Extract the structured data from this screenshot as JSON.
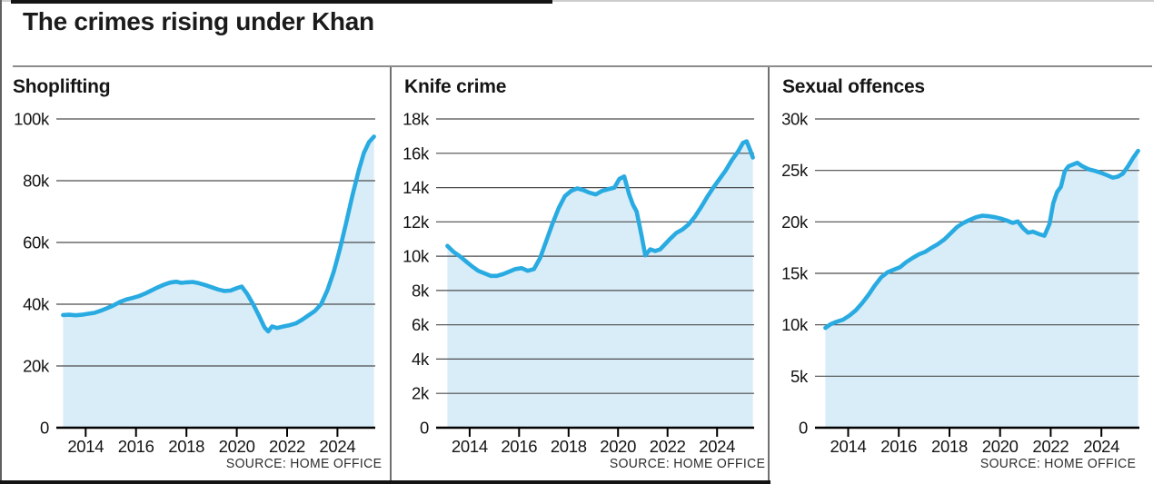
{
  "header": {
    "title": "The crimes rising under Khan"
  },
  "colors": {
    "line": "#29abe2",
    "fill": "#d8edf8",
    "grid": "#4d4d4d",
    "axis": "#000000",
    "text": "#141414"
  },
  "chart_data": [
    {
      "type": "area",
      "title": "Shoplifting",
      "source": "SOURCE: HOME OFFICE",
      "ylim": [
        0,
        100000
      ],
      "ylabels": [
        "100k",
        "80k",
        "60k",
        "40k",
        "20k",
        "0"
      ],
      "xticks": [
        2014,
        2016,
        2018,
        2020,
        2022,
        2024
      ],
      "xlim": [
        2013.05,
        2025.5
      ],
      "legend": "none",
      "grid": "horizontal",
      "points": [
        [
          2013.1,
          36500
        ],
        [
          2013.35,
          36600
        ],
        [
          2013.6,
          36400
        ],
        [
          2013.85,
          36600
        ],
        [
          2014.1,
          36900
        ],
        [
          2014.35,
          37200
        ],
        [
          2014.6,
          37900
        ],
        [
          2014.85,
          38700
        ],
        [
          2015.1,
          39600
        ],
        [
          2015.35,
          40700
        ],
        [
          2015.6,
          41500
        ],
        [
          2015.85,
          42000
        ],
        [
          2016.1,
          42600
        ],
        [
          2016.35,
          43400
        ],
        [
          2016.6,
          44400
        ],
        [
          2016.85,
          45400
        ],
        [
          2017.1,
          46300
        ],
        [
          2017.35,
          47000
        ],
        [
          2017.6,
          47300
        ],
        [
          2017.8,
          46900
        ],
        [
          2018.0,
          47100
        ],
        [
          2018.25,
          47200
        ],
        [
          2018.5,
          46800
        ],
        [
          2018.75,
          46200
        ],
        [
          2019.0,
          45500
        ],
        [
          2019.25,
          44800
        ],
        [
          2019.5,
          44300
        ],
        [
          2019.75,
          44400
        ],
        [
          2020.0,
          45200
        ],
        [
          2020.2,
          45700
        ],
        [
          2020.4,
          43500
        ],
        [
          2020.65,
          40000
        ],
        [
          2020.9,
          36000
        ],
        [
          2021.1,
          32500
        ],
        [
          2021.25,
          31200
        ],
        [
          2021.4,
          32800
        ],
        [
          2021.6,
          32300
        ],
        [
          2021.85,
          32800
        ],
        [
          2022.1,
          33200
        ],
        [
          2022.35,
          33800
        ],
        [
          2022.6,
          35000
        ],
        [
          2022.85,
          36400
        ],
        [
          2023.1,
          37800
        ],
        [
          2023.35,
          40000
        ],
        [
          2023.6,
          44500
        ],
        [
          2023.85,
          50500
        ],
        [
          2024.1,
          58000
        ],
        [
          2024.35,
          66500
        ],
        [
          2024.6,
          75500
        ],
        [
          2024.85,
          83500
        ],
        [
          2025.05,
          89000
        ],
        [
          2025.25,
          92500
        ],
        [
          2025.45,
          94300
        ]
      ]
    },
    {
      "type": "area",
      "title": "Knife crime",
      "source": "SOURCE: HOME OFFICE",
      "ylim": [
        0,
        18000
      ],
      "ylabels": [
        "18k",
        "16k",
        "14k",
        "12k",
        "10k",
        "8k",
        "6k",
        "4k",
        "2k",
        "0"
      ],
      "xticks": [
        2014,
        2016,
        2018,
        2020,
        2022,
        2024
      ],
      "xlim": [
        2013.05,
        2025.5
      ],
      "legend": "none",
      "grid": "horizontal",
      "points": [
        [
          2013.1,
          10600
        ],
        [
          2013.35,
          10250
        ],
        [
          2013.6,
          10000
        ],
        [
          2013.85,
          9700
        ],
        [
          2014.1,
          9400
        ],
        [
          2014.35,
          9150
        ],
        [
          2014.6,
          9000
        ],
        [
          2014.85,
          8850
        ],
        [
          2015.1,
          8850
        ],
        [
          2015.35,
          8950
        ],
        [
          2015.6,
          9100
        ],
        [
          2015.85,
          9250
        ],
        [
          2016.1,
          9300
        ],
        [
          2016.35,
          9150
        ],
        [
          2016.6,
          9250
        ],
        [
          2016.85,
          9900
        ],
        [
          2017.1,
          10900
        ],
        [
          2017.35,
          11900
        ],
        [
          2017.6,
          12800
        ],
        [
          2017.85,
          13500
        ],
        [
          2018.1,
          13800
        ],
        [
          2018.35,
          13950
        ],
        [
          2018.6,
          13850
        ],
        [
          2018.85,
          13700
        ],
        [
          2019.1,
          13600
        ],
        [
          2019.35,
          13800
        ],
        [
          2019.6,
          13900
        ],
        [
          2019.85,
          14000
        ],
        [
          2020.05,
          14500
        ],
        [
          2020.25,
          14650
        ],
        [
          2020.45,
          13600
        ],
        [
          2020.6,
          13000
        ],
        [
          2020.75,
          12600
        ],
        [
          2020.95,
          11200
        ],
        [
          2021.1,
          10050
        ],
        [
          2021.3,
          10400
        ],
        [
          2021.5,
          10300
        ],
        [
          2021.7,
          10400
        ],
        [
          2021.9,
          10700
        ],
        [
          2022.1,
          11000
        ],
        [
          2022.35,
          11350
        ],
        [
          2022.6,
          11550
        ],
        [
          2022.85,
          11850
        ],
        [
          2023.1,
          12300
        ],
        [
          2023.35,
          12850
        ],
        [
          2023.6,
          13450
        ],
        [
          2023.85,
          14000
        ],
        [
          2024.1,
          14500
        ],
        [
          2024.35,
          15000
        ],
        [
          2024.6,
          15600
        ],
        [
          2024.85,
          16100
        ],
        [
          2025.05,
          16600
        ],
        [
          2025.2,
          16700
        ],
        [
          2025.35,
          16150
        ],
        [
          2025.45,
          15750
        ]
      ]
    },
    {
      "type": "area",
      "title": "Sexual offences",
      "source": "SOURCE: HOME OFFICE",
      "ylim": [
        0,
        30000
      ],
      "ylabels": [
        "30k",
        "25k",
        "20k",
        "15k",
        "10k",
        "5k",
        "0"
      ],
      "xticks": [
        2014,
        2016,
        2018,
        2020,
        2022,
        2024
      ],
      "xlim": [
        2013.05,
        2025.5
      ],
      "legend": "none",
      "grid": "horizontal",
      "points": [
        [
          2013.1,
          9700
        ],
        [
          2013.3,
          10050
        ],
        [
          2013.55,
          10300
        ],
        [
          2013.8,
          10500
        ],
        [
          2014.05,
          10900
        ],
        [
          2014.3,
          11400
        ],
        [
          2014.55,
          12100
        ],
        [
          2014.8,
          12900
        ],
        [
          2015.05,
          13800
        ],
        [
          2015.3,
          14600
        ],
        [
          2015.55,
          15100
        ],
        [
          2015.8,
          15350
        ],
        [
          2016.05,
          15600
        ],
        [
          2016.3,
          16100
        ],
        [
          2016.55,
          16500
        ],
        [
          2016.8,
          16850
        ],
        [
          2017.05,
          17100
        ],
        [
          2017.3,
          17500
        ],
        [
          2017.55,
          17850
        ],
        [
          2017.8,
          18300
        ],
        [
          2018.05,
          18900
        ],
        [
          2018.3,
          19500
        ],
        [
          2018.55,
          19900
        ],
        [
          2018.8,
          20200
        ],
        [
          2019.05,
          20450
        ],
        [
          2019.3,
          20600
        ],
        [
          2019.55,
          20550
        ],
        [
          2019.8,
          20450
        ],
        [
          2020.05,
          20300
        ],
        [
          2020.3,
          20100
        ],
        [
          2020.5,
          19900
        ],
        [
          2020.7,
          20050
        ],
        [
          2020.9,
          19400
        ],
        [
          2021.1,
          18950
        ],
        [
          2021.3,
          19050
        ],
        [
          2021.55,
          18800
        ],
        [
          2021.75,
          18650
        ],
        [
          2021.95,
          19800
        ],
        [
          2022.1,
          21800
        ],
        [
          2022.25,
          22900
        ],
        [
          2022.4,
          23400
        ],
        [
          2022.55,
          24900
        ],
        [
          2022.7,
          25400
        ],
        [
          2022.9,
          25600
        ],
        [
          2023.05,
          25750
        ],
        [
          2023.25,
          25400
        ],
        [
          2023.5,
          25100
        ],
        [
          2023.75,
          24950
        ],
        [
          2024.0,
          24750
        ],
        [
          2024.25,
          24500
        ],
        [
          2024.45,
          24300
        ],
        [
          2024.65,
          24400
        ],
        [
          2024.85,
          24700
        ],
        [
          2025.05,
          25400
        ],
        [
          2025.25,
          26200
        ],
        [
          2025.45,
          26900
        ]
      ]
    }
  ]
}
